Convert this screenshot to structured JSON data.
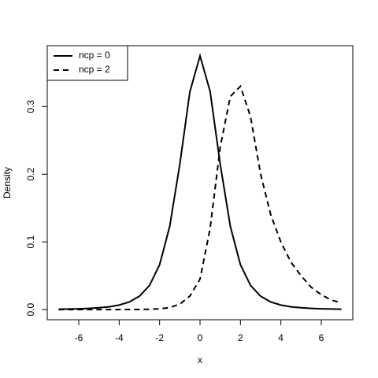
{
  "chart_data": {
    "type": "line",
    "x": [
      -7,
      -6.5,
      -6,
      -5.5,
      -5,
      -4.5,
      -4,
      -3.5,
      -3,
      -2.5,
      -2,
      -1.5,
      -1,
      -0.5,
      0,
      0.5,
      1,
      1.5,
      2,
      2.5,
      3,
      3.5,
      4,
      4.5,
      5,
      5.5,
      6,
      6.5,
      7
    ],
    "series": [
      {
        "name": "ncp = 0",
        "color": "#000000",
        "linestyle": "solid",
        "values": [
          0.0006,
          0.0008,
          0.0012,
          0.0018,
          0.0027,
          0.0041,
          0.0067,
          0.0113,
          0.0197,
          0.0357,
          0.0663,
          0.1229,
          0.2147,
          0.3223,
          0.375,
          0.3223,
          0.2147,
          0.1229,
          0.0663,
          0.0357,
          0.0197,
          0.0113,
          0.0067,
          0.0041,
          0.0027,
          0.0018,
          0.0012,
          0.0008,
          0.0006
        ]
      },
      {
        "name": "ncp = 2",
        "color": "#000000",
        "linestyle": "dashed",
        "values": [
          0,
          0,
          0,
          0,
          0,
          0,
          0,
          0.0001,
          0.0002,
          0.0005,
          0.001,
          0.003,
          0.008,
          0.02,
          0.045,
          0.12,
          0.24,
          0.315,
          0.33,
          0.285,
          0.2,
          0.14,
          0.1,
          0.07,
          0.05,
          0.033,
          0.022,
          0.014,
          0.01
        ]
      }
    ],
    "xlabel": "x",
    "ylabel": "Density",
    "xlim": [
      -7.56,
      7.56
    ],
    "xticks": [
      -6,
      -4,
      -2,
      0,
      2,
      4,
      6
    ],
    "ylim": [
      -0.015,
      0.39
    ],
    "yticks": [
      0.0,
      0.1,
      0.2,
      0.3
    ],
    "legend": "top-left",
    "grid": false
  }
}
